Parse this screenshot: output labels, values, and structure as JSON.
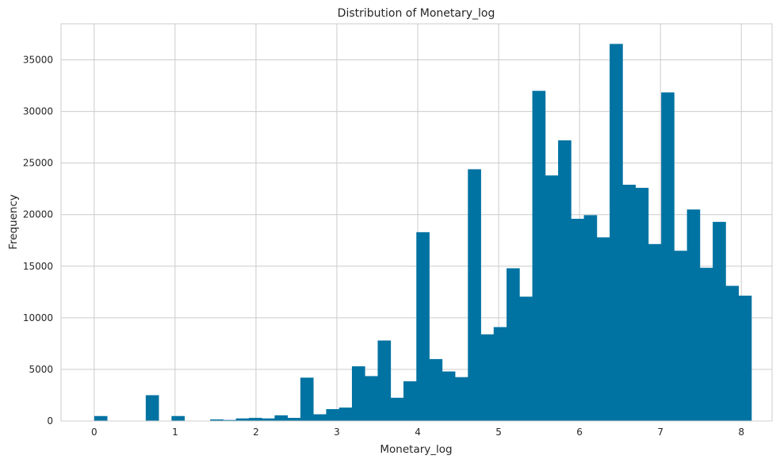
{
  "chart_data": {
    "type": "bar",
    "title": "Distribution of Monetary_log",
    "xlabel": "Monetary_log",
    "ylabel": "Frequency",
    "xlim": [
      -0.41,
      8.38
    ],
    "ylim": [
      0,
      38500
    ],
    "x_ticks": [
      0,
      1,
      2,
      3,
      4,
      5,
      6,
      7,
      8
    ],
    "y_ticks": [
      0,
      5000,
      10000,
      15000,
      20000,
      25000,
      30000,
      35000
    ],
    "grid": true,
    "bar_color": "#0173a2",
    "bin_start": 0.0,
    "bin_width": 0.1593,
    "values": [
      480,
      0,
      0,
      0,
      2500,
      0,
      480,
      0,
      0,
      150,
      100,
      250,
      300,
      250,
      550,
      300,
      4200,
      650,
      1150,
      1300,
      5300,
      4350,
      7800,
      2250,
      3850,
      18300,
      6000,
      4800,
      4250,
      24400,
      8400,
      9100,
      14800,
      12050,
      32000,
      23800,
      27200,
      19600,
      19950,
      17800,
      36550,
      22900,
      22600,
      17150,
      31850,
      16500,
      20500,
      14850,
      19300,
      13100,
      12150
    ]
  }
}
